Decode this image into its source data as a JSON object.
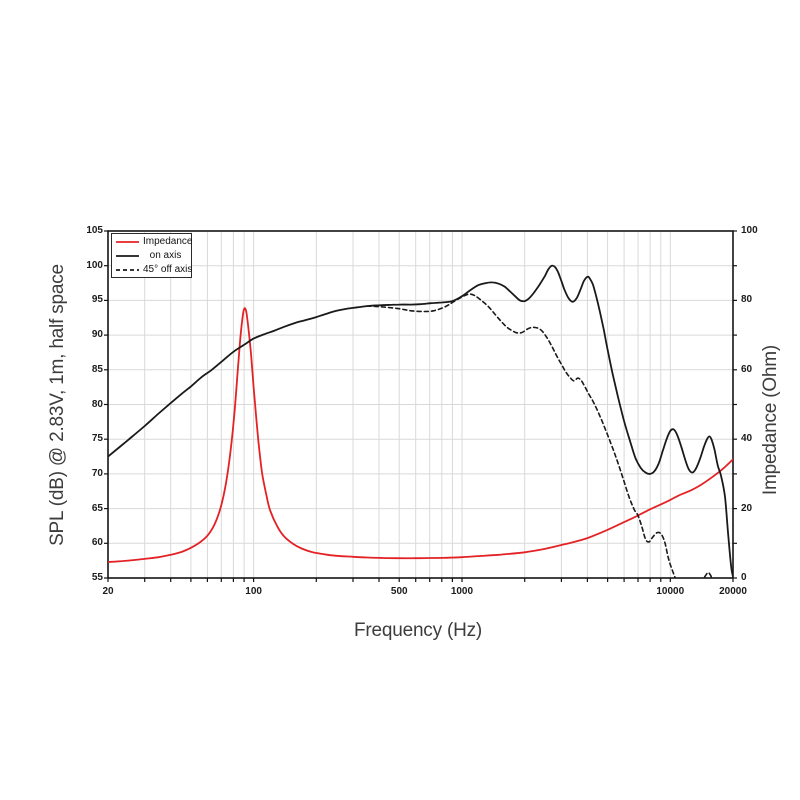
{
  "chart_data": {
    "type": "line",
    "xlabel": "Frequency (Hz)",
    "ylabel_left": "SPL (dB) @ 2.83V, 1m, half space",
    "ylabel_right": "Impedance (Ohm)",
    "x_scale": "log",
    "x_range": [
      20,
      20000
    ],
    "y_left_range": [
      55,
      105
    ],
    "y_right_range": [
      0,
      100
    ],
    "x_tick_labels": [
      "20",
      "100",
      "500",
      "1000",
      "10000",
      "20000"
    ],
    "x_tick_values": [
      20,
      100,
      500,
      1000,
      10000,
      20000
    ],
    "y_left_tick_labels": [
      "55",
      "60",
      "65",
      "70",
      "75",
      "80",
      "85",
      "90",
      "95",
      "100",
      "105"
    ],
    "y_left_tick_values": [
      55,
      60,
      65,
      70,
      75,
      80,
      85,
      90,
      95,
      100,
      105
    ],
    "y_right_tick_labels": [
      "0",
      "20",
      "40",
      "60",
      "80",
      "100"
    ],
    "y_right_tick_values": [
      0,
      20,
      40,
      60,
      80,
      100
    ],
    "grid": true,
    "legend_position": "top-left",
    "colors": {
      "impedance": "#e32226",
      "spl": "#1a1a1a",
      "grid": "#d9d9d9",
      "frame": "#141414"
    },
    "series": [
      {
        "name": "Impedance",
        "axis": "right",
        "unit": "Ohm",
        "color": "#e32226",
        "style": "solid",
        "points": [
          [
            20,
            4.6
          ],
          [
            25,
            5.0
          ],
          [
            30,
            5.5
          ],
          [
            35,
            6.0
          ],
          [
            40,
            6.7
          ],
          [
            45,
            7.5
          ],
          [
            50,
            8.7
          ],
          [
            55,
            10.2
          ],
          [
            60,
            12.2
          ],
          [
            65,
            15.5
          ],
          [
            70,
            21
          ],
          [
            74,
            28
          ],
          [
            78,
            38
          ],
          [
            81,
            48
          ],
          [
            84,
            60
          ],
          [
            86,
            68
          ],
          [
            88,
            74
          ],
          [
            90,
            77.5
          ],
          [
            92,
            77
          ],
          [
            94,
            73
          ],
          [
            97,
            65
          ],
          [
            100,
            55
          ],
          [
            103,
            46
          ],
          [
            106,
            38
          ],
          [
            110,
            30
          ],
          [
            115,
            24
          ],
          [
            120,
            19.5
          ],
          [
            130,
            14.8
          ],
          [
            140,
            12
          ],
          [
            155,
            9.8
          ],
          [
            170,
            8.5
          ],
          [
            190,
            7.5
          ],
          [
            220,
            6.8
          ],
          [
            250,
            6.4
          ],
          [
            300,
            6.1
          ],
          [
            350,
            5.9
          ],
          [
            400,
            5.8
          ],
          [
            500,
            5.7
          ],
          [
            600,
            5.7
          ],
          [
            700,
            5.75
          ],
          [
            800,
            5.8
          ],
          [
            1000,
            6.0
          ],
          [
            1200,
            6.3
          ],
          [
            1500,
            6.7
          ],
          [
            2000,
            7.4
          ],
          [
            2500,
            8.4
          ],
          [
            3000,
            9.5
          ],
          [
            3500,
            10.5
          ],
          [
            4000,
            11.5
          ],
          [
            4500,
            12.7
          ],
          [
            5000,
            13.9
          ],
          [
            6000,
            16.1
          ],
          [
            7000,
            18.0
          ],
          [
            8000,
            19.8
          ],
          [
            9000,
            21.2
          ],
          [
            10000,
            22.5
          ],
          [
            11000,
            23.8
          ],
          [
            12500,
            25.2
          ],
          [
            14000,
            26.8
          ],
          [
            16000,
            29.2
          ],
          [
            18000,
            31.6
          ],
          [
            20000,
            34.2
          ]
        ]
      },
      {
        "name": "on axis",
        "axis": "left",
        "unit": "dB",
        "color": "#1a1a1a",
        "style": "solid",
        "points": [
          [
            20,
            72.5
          ],
          [
            25,
            74.9
          ],
          [
            30,
            76.9
          ],
          [
            35,
            78.7
          ],
          [
            40,
            80.2
          ],
          [
            45,
            81.5
          ],
          [
            50,
            82.6
          ],
          [
            56,
            83.9
          ],
          [
            63,
            85.0
          ],
          [
            71,
            86.3
          ],
          [
            80,
            87.6
          ],
          [
            90,
            88.6
          ],
          [
            100,
            89.5
          ],
          [
            112,
            90.1
          ],
          [
            125,
            90.6
          ],
          [
            140,
            91.2
          ],
          [
            160,
            91.8
          ],
          [
            180,
            92.2
          ],
          [
            200,
            92.6
          ],
          [
            225,
            93.1
          ],
          [
            250,
            93.5
          ],
          [
            280,
            93.8
          ],
          [
            315,
            94.0
          ],
          [
            355,
            94.2
          ],
          [
            400,
            94.3
          ],
          [
            450,
            94.35
          ],
          [
            500,
            94.4
          ],
          [
            560,
            94.4
          ],
          [
            630,
            94.45
          ],
          [
            710,
            94.6
          ],
          [
            800,
            94.7
          ],
          [
            900,
            94.9
          ],
          [
            1000,
            95.6
          ],
          [
            1100,
            96.5
          ],
          [
            1200,
            97.2
          ],
          [
            1300,
            97.5
          ],
          [
            1400,
            97.6
          ],
          [
            1500,
            97.4
          ],
          [
            1600,
            97.0
          ],
          [
            1700,
            96.3
          ],
          [
            1800,
            95.6
          ],
          [
            1900,
            95.0
          ],
          [
            2000,
            94.9
          ],
          [
            2100,
            95.3
          ],
          [
            2200,
            96.0
          ],
          [
            2350,
            97.2
          ],
          [
            2500,
            98.5
          ],
          [
            2600,
            99.5
          ],
          [
            2700,
            100.0
          ],
          [
            2800,
            99.8
          ],
          [
            2900,
            99.0
          ],
          [
            3000,
            97.8
          ],
          [
            3100,
            96.6
          ],
          [
            3250,
            95.3
          ],
          [
            3400,
            94.8
          ],
          [
            3550,
            95.3
          ],
          [
            3700,
            96.5
          ],
          [
            3850,
            97.8
          ],
          [
            4000,
            98.4
          ],
          [
            4100,
            98.2
          ],
          [
            4250,
            97.3
          ],
          [
            4400,
            95.7
          ],
          [
            4600,
            93.3
          ],
          [
            4800,
            90.7
          ],
          [
            5000,
            87.9
          ],
          [
            5300,
            84.3
          ],
          [
            5600,
            81.2
          ],
          [
            6000,
            77.6
          ],
          [
            6400,
            74.8
          ],
          [
            6800,
            72.3
          ],
          [
            7200,
            70.9
          ],
          [
            7600,
            70.2
          ],
          [
            8000,
            70.0
          ],
          [
            8400,
            70.4
          ],
          [
            8800,
            71.5
          ],
          [
            9200,
            73.3
          ],
          [
            9600,
            75.0
          ],
          [
            10000,
            76.2
          ],
          [
            10400,
            76.4
          ],
          [
            10800,
            75.6
          ],
          [
            11300,
            73.9
          ],
          [
            11800,
            72.0
          ],
          [
            12300,
            70.6
          ],
          [
            12800,
            70.2
          ],
          [
            13300,
            70.8
          ],
          [
            13900,
            72.2
          ],
          [
            14500,
            73.9
          ],
          [
            15000,
            75.0
          ],
          [
            15400,
            75.4
          ],
          [
            15800,
            74.9
          ],
          [
            16300,
            73.5
          ],
          [
            16900,
            71.2
          ],
          [
            17500,
            69.8
          ],
          [
            18300,
            66.7
          ],
          [
            19000,
            60.9
          ],
          [
            19600,
            56.6
          ],
          [
            20000,
            55.2
          ]
        ]
      },
      {
        "name": "45° off axis",
        "axis": "left",
        "unit": "dB",
        "color": "#1a1a1a",
        "style": "dashed",
        "points": [
          [
            350,
            94.2
          ],
          [
            420,
            94.05
          ],
          [
            500,
            93.8
          ],
          [
            570,
            93.5
          ],
          [
            650,
            93.4
          ],
          [
            730,
            93.5
          ],
          [
            820,
            94.0
          ],
          [
            900,
            94.7
          ],
          [
            1000,
            95.5
          ],
          [
            1080,
            95.9
          ],
          [
            1150,
            95.7
          ],
          [
            1250,
            94.9
          ],
          [
            1350,
            94.0
          ],
          [
            1450,
            92.9
          ],
          [
            1550,
            91.9
          ],
          [
            1650,
            91.1
          ],
          [
            1750,
            90.6
          ],
          [
            1850,
            90.3
          ],
          [
            1950,
            90.4
          ],
          [
            2100,
            91.0
          ],
          [
            2250,
            91.1
          ],
          [
            2400,
            90.7
          ],
          [
            2550,
            89.7
          ],
          [
            2700,
            88.4
          ],
          [
            2850,
            87.0
          ],
          [
            3000,
            85.8
          ],
          [
            3150,
            84.7
          ],
          [
            3300,
            83.9
          ],
          [
            3450,
            83.4
          ],
          [
            3600,
            83.8
          ],
          [
            3750,
            83.4
          ],
          [
            3900,
            82.5
          ],
          [
            4100,
            81.3
          ],
          [
            4300,
            80.2
          ],
          [
            4600,
            78.3
          ],
          [
            4900,
            76.3
          ],
          [
            5200,
            74.3
          ],
          [
            5500,
            72.3
          ],
          [
            5900,
            69.6
          ],
          [
            6300,
            66.9
          ],
          [
            6700,
            64.9
          ],
          [
            7000,
            64.0
          ],
          [
            7300,
            62.4
          ],
          [
            7600,
            60.6
          ],
          [
            7900,
            60.2
          ],
          [
            8200,
            60.8
          ],
          [
            8600,
            61.5
          ],
          [
            9000,
            61.4
          ],
          [
            9400,
            60.2
          ],
          [
            9800,
            57.8
          ],
          [
            10200,
            56.2
          ],
          [
            10600,
            54.9
          ],
          [
            11000,
            53.8
          ],
          [
            12500,
            53.2
          ],
          [
            13800,
            54.1
          ],
          [
            14300,
            54.7
          ],
          [
            14800,
            55.4
          ],
          [
            15200,
            55.8
          ],
          [
            15600,
            55.4
          ],
          [
            16000,
            54.7
          ],
          [
            16400,
            54.1
          ]
        ]
      }
    ]
  }
}
